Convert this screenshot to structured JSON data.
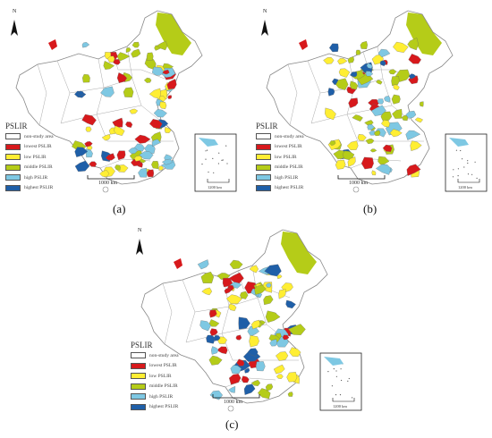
{
  "colors": {
    "lowest": "#d7191c",
    "low": "#ffee33",
    "middle": "#b5cc18",
    "high": "#7ec8e3",
    "highest": "#1f5fa8",
    "outline": "#888888"
  },
  "legend": {
    "title": "PSLIR",
    "items": [
      {
        "key": "none",
        "label": "non-study area"
      },
      {
        "key": "lowest",
        "label": "lowest PSLIR"
      },
      {
        "key": "low",
        "label": "low PSLIR"
      },
      {
        "key": "middle",
        "label": "middle PSLIR"
      },
      {
        "key": "high",
        "label": "high PSLIR"
      },
      {
        "key": "highest",
        "label": "highest PSLIR"
      }
    ]
  },
  "north_label": "N",
  "scale_label": "1000 km",
  "inset_scale_label": "1200 km",
  "panels": [
    {
      "label": "(a)"
    },
    {
      "label": "(b)"
    },
    {
      "label": "(c)"
    }
  ]
}
